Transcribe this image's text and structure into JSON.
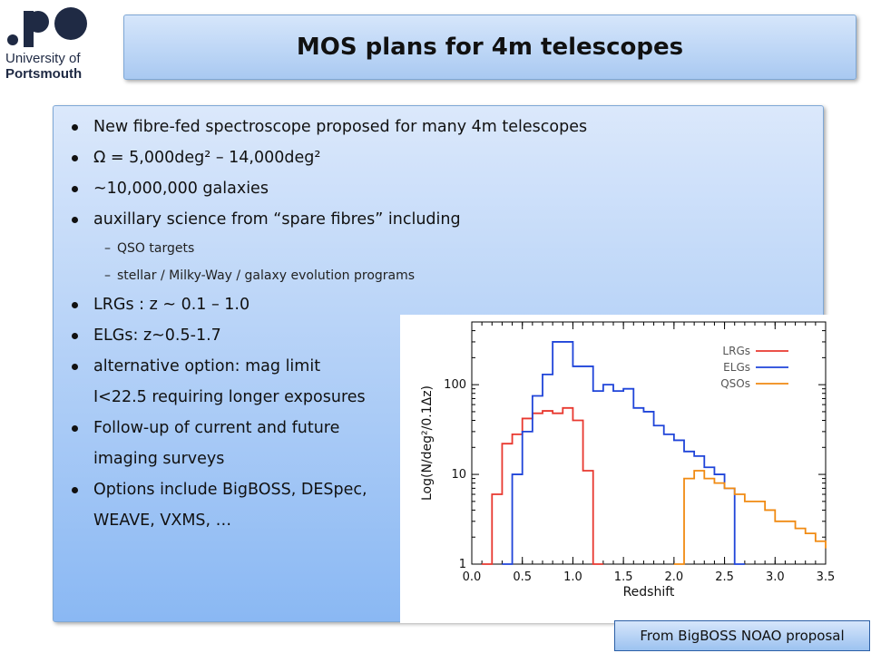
{
  "logo": {
    "line1": "University of",
    "line2": "Portsmouth"
  },
  "title": "MOS plans for 4m telescopes",
  "bullets": [
    {
      "type": "bullet",
      "text": "New fibre-fed spectroscope proposed for many 4m telescopes"
    },
    {
      "type": "bullet",
      "text": "Ω = 5,000deg² – 14,000deg²"
    },
    {
      "type": "bullet",
      "text": "~10,000,000 galaxies"
    },
    {
      "type": "bullet",
      "text": "auxillary science from “spare fibres” including"
    },
    {
      "type": "sub",
      "text": "QSO targets"
    },
    {
      "type": "sub",
      "text": "stellar / Milky-Way / galaxy evolution programs"
    },
    {
      "type": "bullet",
      "text": "LRGs : z ~ 0.1 – 1.0"
    },
    {
      "type": "bullet",
      "text": "ELGs: z~0.5-1.7"
    },
    {
      "type": "bullet",
      "text": "alternative option: mag limit"
    },
    {
      "type": "cont",
      "text": "I<22.5 requiring longer exposures"
    },
    {
      "type": "bullet",
      "text": "Follow-up of current and future"
    },
    {
      "type": "cont",
      "text": "imaging surveys"
    },
    {
      "type": "bullet",
      "text": "Options include BigBOSS, DESpec,"
    },
    {
      "type": "cont",
      "text": "WEAVE, VXMS, …"
    }
  ],
  "caption": "From BigBOSS NOAO proposal",
  "chart_data": {
    "type": "line",
    "step": true,
    "xlabel": "Redshift",
    "ylabel": "Log(N/deg²/0.1Δz)",
    "xlim": [
      0,
      3.5
    ],
    "ylim": [
      1,
      500
    ],
    "yscale": "log",
    "xticks": [
      "0.0",
      "0.5",
      "1.0",
      "1.5",
      "2.0",
      "2.5",
      "3.0",
      "3.5"
    ],
    "yticks": [
      "1",
      "10",
      "100"
    ],
    "legend_position": "top-right",
    "series": [
      {
        "name": "LRGs",
        "color": "#e8382f",
        "x": [
          0.1,
          0.2,
          0.3,
          0.4,
          0.5,
          0.6,
          0.7,
          0.8,
          0.9,
          1.0,
          1.1,
          1.2
        ],
        "values": [
          1,
          6,
          22,
          28,
          42,
          48,
          51,
          48,
          55,
          40,
          11,
          1
        ]
      },
      {
        "name": "ELGs",
        "color": "#1f44d9",
        "x": [
          0.3,
          0.4,
          0.5,
          0.6,
          0.7,
          0.8,
          0.9,
          1.0,
          1.1,
          1.2,
          1.3,
          1.4,
          1.5,
          1.6,
          1.7,
          1.8,
          1.9,
          2.0,
          2.1,
          2.2,
          2.3,
          2.4,
          2.5,
          2.6
        ],
        "values": [
          1,
          10,
          30,
          75,
          130,
          300,
          300,
          160,
          160,
          85,
          100,
          85,
          90,
          55,
          50,
          35,
          28,
          24,
          18,
          16,
          12,
          10,
          7,
          1
        ]
      },
      {
        "name": "QSOs",
        "color": "#f08a12",
        "x": [
          2.0,
          2.1,
          2.2,
          2.3,
          2.4,
          2.5,
          2.6,
          2.7,
          2.8,
          2.9,
          3.0,
          3.1,
          3.2,
          3.3,
          3.4,
          3.5
        ],
        "values": [
          1,
          9,
          11,
          9,
          8,
          7,
          6,
          5,
          5,
          4,
          3,
          3,
          2.5,
          2.2,
          1.8,
          1.5
        ]
      }
    ]
  }
}
